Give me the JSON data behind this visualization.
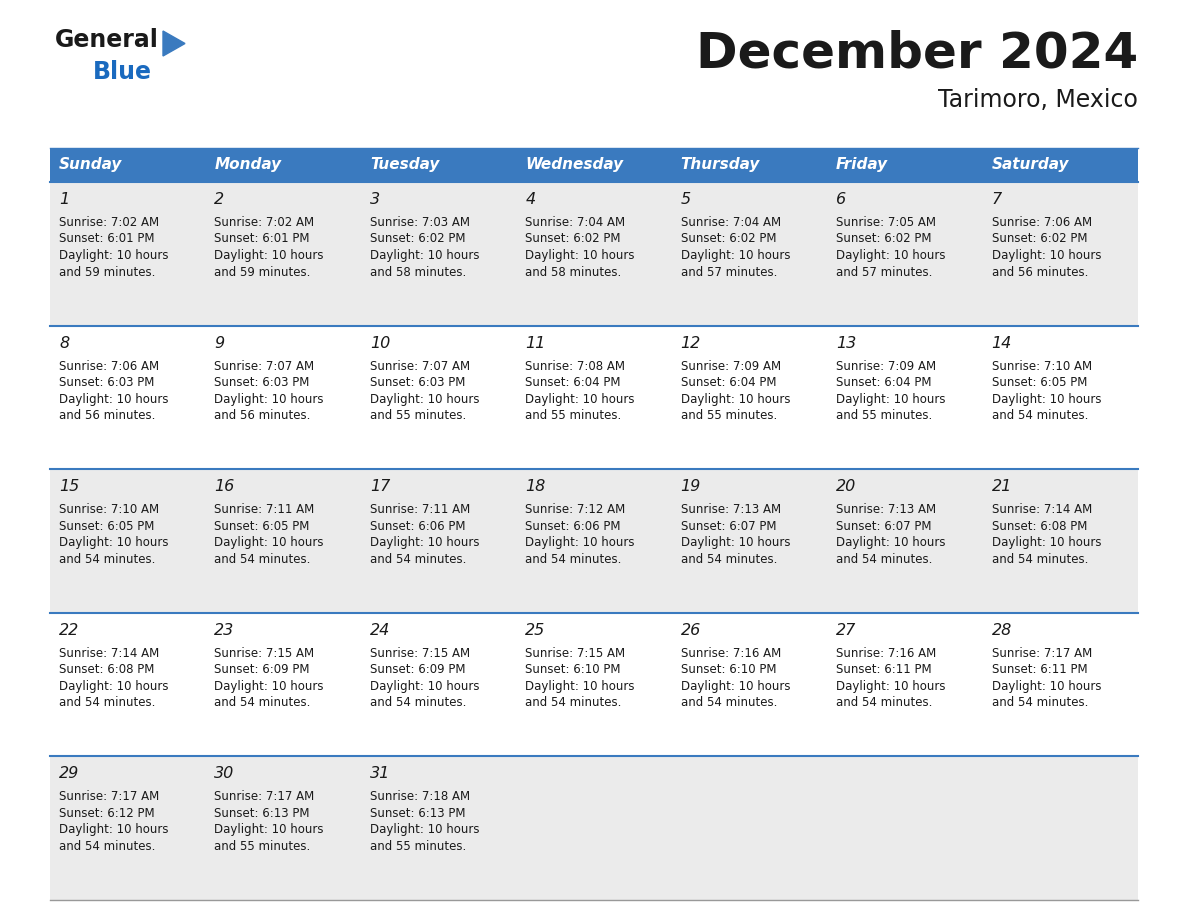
{
  "title": "December 2024",
  "subtitle": "Tarimoro, Mexico",
  "header_bg": "#3a7abf",
  "header_text": "#ffffff",
  "row_bg_odd": "#ebebeb",
  "row_bg_even": "#ffffff",
  "divider_color": "#3a7abf",
  "days_of_week": [
    "Sunday",
    "Monday",
    "Tuesday",
    "Wednesday",
    "Thursday",
    "Friday",
    "Saturday"
  ],
  "calendar_data": [
    [
      {
        "day": 1,
        "sunrise": "7:02 AM",
        "sunset": "6:01 PM",
        "daylight_h": "10 hours",
        "daylight_m": "and 59 minutes."
      },
      {
        "day": 2,
        "sunrise": "7:02 AM",
        "sunset": "6:01 PM",
        "daylight_h": "10 hours",
        "daylight_m": "and 59 minutes."
      },
      {
        "day": 3,
        "sunrise": "7:03 AM",
        "sunset": "6:02 PM",
        "daylight_h": "10 hours",
        "daylight_m": "and 58 minutes."
      },
      {
        "day": 4,
        "sunrise": "7:04 AM",
        "sunset": "6:02 PM",
        "daylight_h": "10 hours",
        "daylight_m": "and 58 minutes."
      },
      {
        "day": 5,
        "sunrise": "7:04 AM",
        "sunset": "6:02 PM",
        "daylight_h": "10 hours",
        "daylight_m": "and 57 minutes."
      },
      {
        "day": 6,
        "sunrise": "7:05 AM",
        "sunset": "6:02 PM",
        "daylight_h": "10 hours",
        "daylight_m": "and 57 minutes."
      },
      {
        "day": 7,
        "sunrise": "7:06 AM",
        "sunset": "6:02 PM",
        "daylight_h": "10 hours",
        "daylight_m": "and 56 minutes."
      }
    ],
    [
      {
        "day": 8,
        "sunrise": "7:06 AM",
        "sunset": "6:03 PM",
        "daylight_h": "10 hours",
        "daylight_m": "and 56 minutes."
      },
      {
        "day": 9,
        "sunrise": "7:07 AM",
        "sunset": "6:03 PM",
        "daylight_h": "10 hours",
        "daylight_m": "and 56 minutes."
      },
      {
        "day": 10,
        "sunrise": "7:07 AM",
        "sunset": "6:03 PM",
        "daylight_h": "10 hours",
        "daylight_m": "and 55 minutes."
      },
      {
        "day": 11,
        "sunrise": "7:08 AM",
        "sunset": "6:04 PM",
        "daylight_h": "10 hours",
        "daylight_m": "and 55 minutes."
      },
      {
        "day": 12,
        "sunrise": "7:09 AM",
        "sunset": "6:04 PM",
        "daylight_h": "10 hours",
        "daylight_m": "and 55 minutes."
      },
      {
        "day": 13,
        "sunrise": "7:09 AM",
        "sunset": "6:04 PM",
        "daylight_h": "10 hours",
        "daylight_m": "and 55 minutes."
      },
      {
        "day": 14,
        "sunrise": "7:10 AM",
        "sunset": "6:05 PM",
        "daylight_h": "10 hours",
        "daylight_m": "and 54 minutes."
      }
    ],
    [
      {
        "day": 15,
        "sunrise": "7:10 AM",
        "sunset": "6:05 PM",
        "daylight_h": "10 hours",
        "daylight_m": "and 54 minutes."
      },
      {
        "day": 16,
        "sunrise": "7:11 AM",
        "sunset": "6:05 PM",
        "daylight_h": "10 hours",
        "daylight_m": "and 54 minutes."
      },
      {
        "day": 17,
        "sunrise": "7:11 AM",
        "sunset": "6:06 PM",
        "daylight_h": "10 hours",
        "daylight_m": "and 54 minutes."
      },
      {
        "day": 18,
        "sunrise": "7:12 AM",
        "sunset": "6:06 PM",
        "daylight_h": "10 hours",
        "daylight_m": "and 54 minutes."
      },
      {
        "day": 19,
        "sunrise": "7:13 AM",
        "sunset": "6:07 PM",
        "daylight_h": "10 hours",
        "daylight_m": "and 54 minutes."
      },
      {
        "day": 20,
        "sunrise": "7:13 AM",
        "sunset": "6:07 PM",
        "daylight_h": "10 hours",
        "daylight_m": "and 54 minutes."
      },
      {
        "day": 21,
        "sunrise": "7:14 AM",
        "sunset": "6:08 PM",
        "daylight_h": "10 hours",
        "daylight_m": "and 54 minutes."
      }
    ],
    [
      {
        "day": 22,
        "sunrise": "7:14 AM",
        "sunset": "6:08 PM",
        "daylight_h": "10 hours",
        "daylight_m": "and 54 minutes."
      },
      {
        "day": 23,
        "sunrise": "7:15 AM",
        "sunset": "6:09 PM",
        "daylight_h": "10 hours",
        "daylight_m": "and 54 minutes."
      },
      {
        "day": 24,
        "sunrise": "7:15 AM",
        "sunset": "6:09 PM",
        "daylight_h": "10 hours",
        "daylight_m": "and 54 minutes."
      },
      {
        "day": 25,
        "sunrise": "7:15 AM",
        "sunset": "6:10 PM",
        "daylight_h": "10 hours",
        "daylight_m": "and 54 minutes."
      },
      {
        "day": 26,
        "sunrise": "7:16 AM",
        "sunset": "6:10 PM",
        "daylight_h": "10 hours",
        "daylight_m": "and 54 minutes."
      },
      {
        "day": 27,
        "sunrise": "7:16 AM",
        "sunset": "6:11 PM",
        "daylight_h": "10 hours",
        "daylight_m": "and 54 minutes."
      },
      {
        "day": 28,
        "sunrise": "7:17 AM",
        "sunset": "6:11 PM",
        "daylight_h": "10 hours",
        "daylight_m": "and 54 minutes."
      }
    ],
    [
      {
        "day": 29,
        "sunrise": "7:17 AM",
        "sunset": "6:12 PM",
        "daylight_h": "10 hours",
        "daylight_m": "and 54 minutes."
      },
      {
        "day": 30,
        "sunrise": "7:17 AM",
        "sunset": "6:13 PM",
        "daylight_h": "10 hours",
        "daylight_m": "and 55 minutes."
      },
      {
        "day": 31,
        "sunrise": "7:18 AM",
        "sunset": "6:13 PM",
        "daylight_h": "10 hours",
        "daylight_m": "and 55 minutes."
      },
      null,
      null,
      null,
      null
    ]
  ],
  "logo_color_general": "#1a1a1a",
  "logo_color_blue": "#1a6abf",
  "logo_triangle_color": "#3a7abf",
  "title_color": "#1a1a1a",
  "subtitle_color": "#1a1a1a"
}
